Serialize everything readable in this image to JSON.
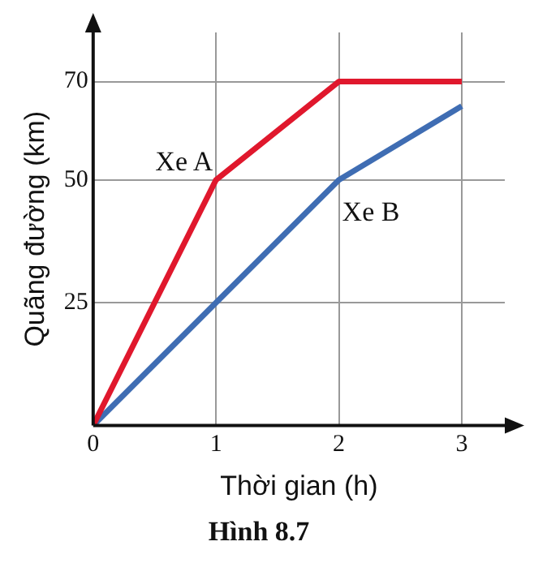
{
  "chart_data": {
    "type": "line",
    "title": "Hình 8.7",
    "xlabel": "Thời gian (h)",
    "ylabel": "Quãng đường (km)",
    "xlim": [
      0,
      3.35
    ],
    "ylim": [
      0,
      80
    ],
    "xticks": [
      0,
      1,
      2,
      3
    ],
    "yticks": [
      {
        "value": 0,
        "label": null
      },
      25,
      50,
      70
    ],
    "grid": true,
    "legend": false,
    "marker": "none",
    "line_style": "solid",
    "series": [
      {
        "name": "Xe A",
        "color": "#e0182d",
        "x": [
          0,
          1,
          2,
          3
        ],
        "values": [
          0,
          50,
          70,
          70
        ]
      },
      {
        "name": "Xe B",
        "color": "#3f6db3",
        "x": [
          0,
          1,
          2,
          3
        ],
        "values": [
          0,
          25,
          50,
          65
        ]
      }
    ]
  }
}
